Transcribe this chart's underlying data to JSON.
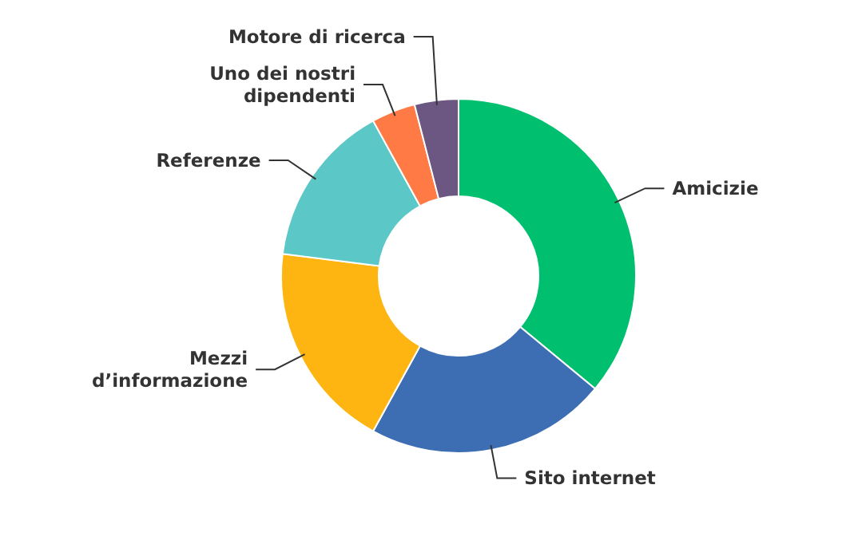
{
  "chart_data": {
    "type": "donut",
    "categories": [
      "Amicizie",
      "Sito internet",
      "Mezzi\nd’informazione",
      "Referenze",
      "Uno dei nostri\ndipendenti",
      "Motore di ricerca"
    ],
    "values": [
      36,
      22,
      19,
      15,
      4,
      4
    ],
    "colors": [
      "#00bf6f",
      "#3d6eb3",
      "#ffb511",
      "#5bc7c6",
      "#ff7a45",
      "#6b5782"
    ],
    "legend": false
  }
}
